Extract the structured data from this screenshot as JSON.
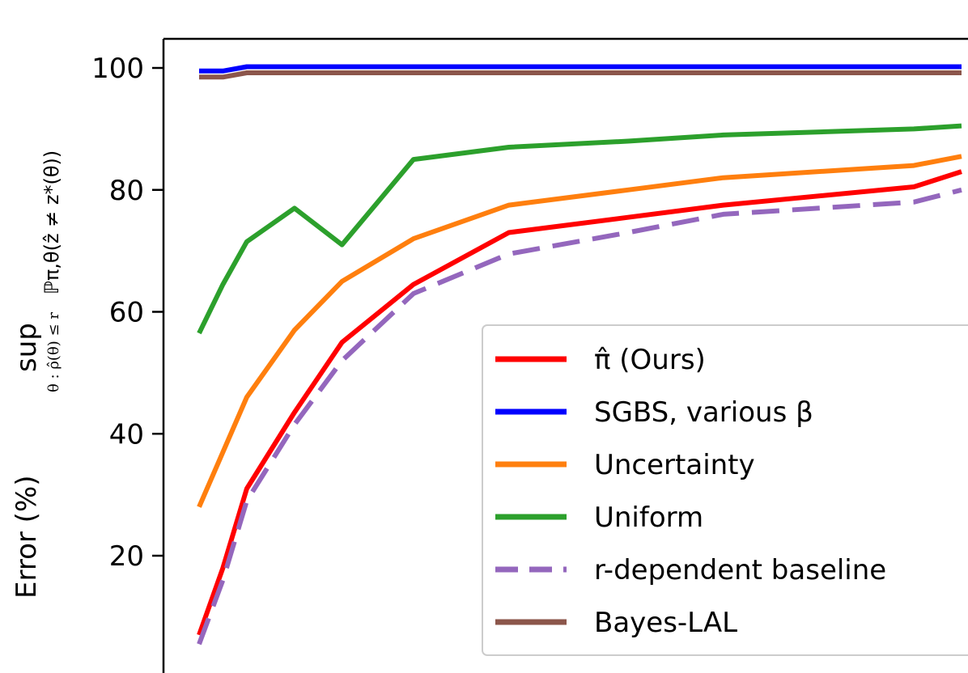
{
  "chart_data": {
    "type": "line",
    "ylabel_parts": {
      "main": "Error (%)",
      "sup": "sup",
      "sub": "θ : ρ̂(θ) ≤ r",
      "prob": "ℙπ,θ(ẑ ≠ z*(θ))"
    },
    "ylim": [
      0,
      105
    ],
    "yticks": [
      20,
      40,
      60,
      80,
      100
    ],
    "grid": false,
    "legend_placement": "lower right",
    "x": [
      1,
      1.5,
      2,
      3,
      4,
      5.5,
      7.5,
      10,
      12,
      16,
      17
    ],
    "series": [
      {
        "name": "π̂ (Ours)",
        "color": "#ff0000",
        "dash": "",
        "values": [
          7,
          18,
          31,
          43.5,
          55,
          64.5,
          73,
          75.5,
          77.5,
          80.5,
          83
        ]
      },
      {
        "name": "SGBS, various β",
        "color": "#0000ff",
        "dash": "",
        "values": [
          99.5,
          99.5,
          100.2,
          100.2,
          100.2,
          100.2,
          100.2,
          100.2,
          100.2,
          100.2,
          100.2
        ]
      },
      {
        "name": "Uncertainty",
        "color": "#ff7f0e",
        "dash": "",
        "values": [
          28,
          37,
          46,
          57,
          65,
          72,
          77.5,
          80,
          82,
          84,
          85.5
        ]
      },
      {
        "name": "Uniform",
        "color": "#2ca02c",
        "dash": "",
        "values": [
          56.5,
          64.5,
          71.5,
          77,
          71,
          85,
          87,
          88,
          89,
          90,
          90.5
        ]
      },
      {
        "name": "r-dependent baseline",
        "color": "#9467bd",
        "dash": "34,16",
        "values": [
          5.5,
          16,
          29,
          41.5,
          52,
          63,
          69.5,
          73,
          76,
          78,
          80
        ]
      },
      {
        "name": "Bayes-LAL",
        "color": "#8c564b",
        "dash": "",
        "values": [
          98.5,
          98.5,
          99.2,
          99.2,
          99.2,
          99.2,
          99.2,
          99.2,
          99.2,
          99.2,
          99.2
        ]
      }
    ]
  }
}
